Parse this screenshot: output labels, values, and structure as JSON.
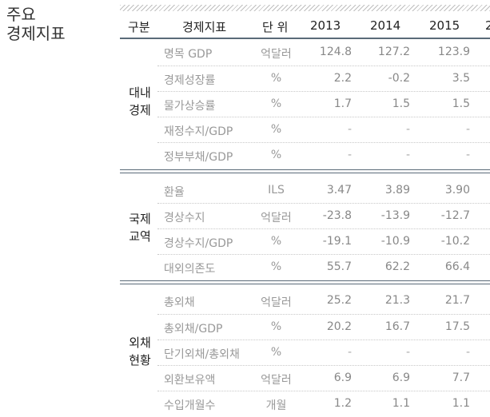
{
  "side_title": [
    "주요",
    "경제지표"
  ],
  "header": {
    "group": "구분",
    "indicator": "경제지표",
    "unit": "단 위",
    "years": [
      "2013",
      "2014",
      "2015"
    ],
    "partial_year": "2"
  },
  "sections": [
    {
      "name": [
        "대내",
        "경제"
      ],
      "rows": [
        {
          "indicator": "명목 GDP",
          "unit": "억달러",
          "values": [
            "124.8",
            "127.2",
            "123.9"
          ]
        },
        {
          "indicator": "경제성장률",
          "unit": "%",
          "values": [
            "2.2",
            "-0.2",
            "3.5"
          ]
        },
        {
          "indicator": "물가상승률",
          "unit": "%",
          "values": [
            "1.7",
            "1.5",
            "1.5"
          ]
        },
        {
          "indicator": "재정수지/GDP",
          "unit": "%",
          "values": [
            "-",
            "-",
            "-"
          ]
        },
        {
          "indicator": "정부부채/GDP",
          "unit": "%",
          "values": [
            "-",
            "-",
            "-"
          ]
        }
      ]
    },
    {
      "name": [
        "국제",
        "교역"
      ],
      "rows": [
        {
          "indicator": "환율",
          "unit": "ILS",
          "values": [
            "3.47",
            "3.89",
            "3.90"
          ]
        },
        {
          "indicator": "경상수지",
          "unit": "억달러",
          "values": [
            "-23.8",
            "-13.9",
            "-12.7"
          ]
        },
        {
          "indicator": "경상수지/GDP",
          "unit": "%",
          "values": [
            "-19.1",
            "-10.9",
            "-10.2"
          ]
        },
        {
          "indicator": "대외의존도",
          "unit": "%",
          "values": [
            "55.7",
            "62.2",
            "66.4"
          ]
        }
      ]
    },
    {
      "name": [
        "외채",
        "현황"
      ],
      "rows": [
        {
          "indicator": "총외채",
          "unit": "억달러",
          "values": [
            "25.2",
            "21.3",
            "21.7"
          ]
        },
        {
          "indicator": "총외채/GDP",
          "unit": "%",
          "values": [
            "20.2",
            "16.7",
            "17.5"
          ]
        },
        {
          "indicator": "단기외채/총외채",
          "unit": "%",
          "values": [
            "-",
            "-",
            "-"
          ]
        },
        {
          "indicator": "외환보유액",
          "unit": "억달러",
          "values": [
            "6.9",
            "6.9",
            "7.7"
          ]
        },
        {
          "indicator": "수입개월수",
          "unit": "개월",
          "values": [
            "1.2",
            "1.1",
            "1.1"
          ]
        }
      ]
    }
  ]
}
